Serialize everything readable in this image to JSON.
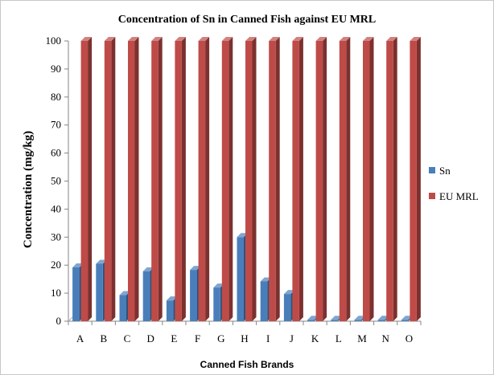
{
  "chart_data": {
    "type": "bar",
    "title": "Concentration of Sn in Canned Fish against  EU MRL",
    "xlabel": "Canned Fish Brands",
    "ylabel": "Concentration (mg/kg)",
    "ylim": [
      0,
      100
    ],
    "yticks": [
      "0",
      "10",
      "20",
      "30",
      "40",
      "50",
      "60",
      "70",
      "80",
      "90",
      "100"
    ],
    "categories": [
      "A",
      "B",
      "C",
      "D",
      "E",
      "F",
      "G",
      "H",
      "I",
      "J",
      "K",
      "L",
      "M",
      "N",
      "O"
    ],
    "series": [
      {
        "name": "Sn",
        "color": "#4a7ebb",
        "values": [
          19.2,
          20.5,
          9.3,
          17.8,
          7.4,
          18.3,
          12.0,
          30.0,
          14.2,
          9.7,
          0.5,
          0.5,
          0.5,
          0.5,
          0.5
        ]
      },
      {
        "name": "EU MRL",
        "color": "#be4b48",
        "values": [
          100,
          100,
          100,
          100,
          100,
          100,
          100,
          100,
          100,
          100,
          100,
          100,
          100,
          100,
          100
        ]
      }
    ],
    "grid": false,
    "legend_position": "right"
  }
}
